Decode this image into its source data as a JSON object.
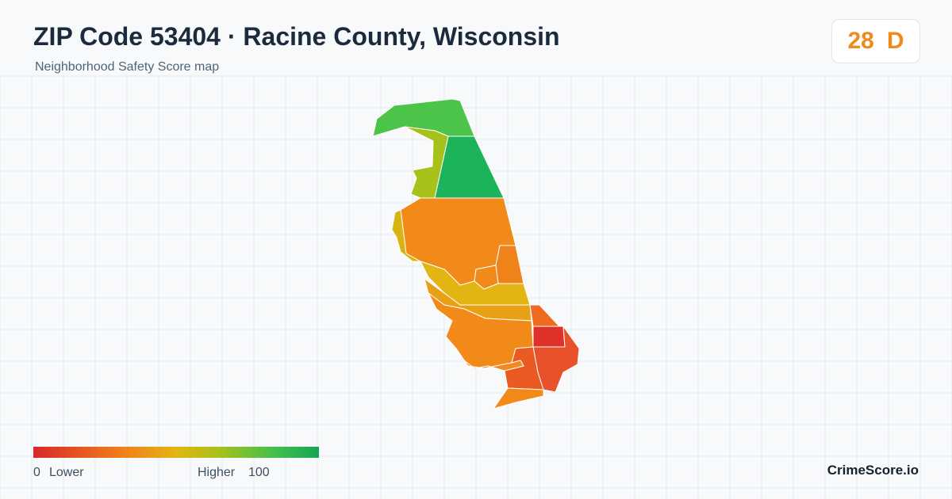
{
  "header": {
    "title": "ZIP Code 53404 · Racine County, Wisconsin",
    "subtitle": "Neighborhood Safety Score map"
  },
  "score": {
    "value": 28,
    "grade": "D"
  },
  "legend": {
    "min": 0,
    "min_label": "Lower",
    "max_label": "Higher",
    "max": 100
  },
  "brand": "CrimeScore.io"
}
